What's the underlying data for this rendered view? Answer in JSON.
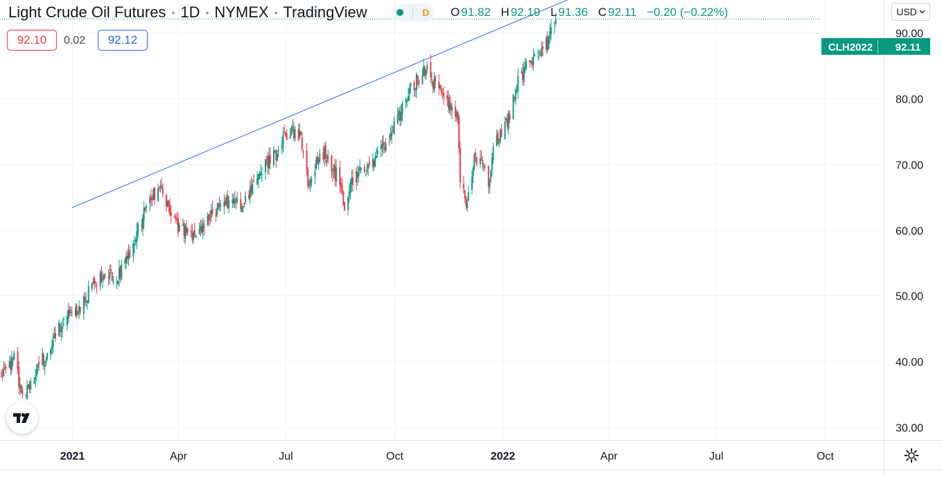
{
  "header": {
    "symbol_name": "Light Crude Oil Futures",
    "interval": "1D",
    "exchange": "NYMEX",
    "source": "TradingView",
    "status_letter": "D"
  },
  "ohlc": {
    "o_label": "O",
    "o": "91.82",
    "h_label": "H",
    "h": "92.19",
    "l_label": "L",
    "l": "91.36",
    "c_label": "C",
    "c": "92.11",
    "change": "−0.20 (−0.22%)"
  },
  "trade": {
    "sell": "92.10",
    "spread": "0.02",
    "buy": "92.12"
  },
  "currency": "USD",
  "colors": {
    "up": "#089981",
    "down": "#f23645",
    "trendline": "#2962ff",
    "grid": "#f0f3fa"
  },
  "chart_data": {
    "type": "candlestick",
    "symbol": "CLH2022",
    "last_price": 92.11,
    "last_price_label": "92.11",
    "ylim": [
      28,
      95
    ],
    "yticks": [
      30,
      40,
      50,
      60,
      70,
      80,
      90
    ],
    "ytick_labels": [
      "30.00",
      "40.00",
      "50.00",
      "60.00",
      "70.00",
      "80.00",
      "90.00"
    ],
    "x_range": [
      "2020-11-01",
      "2022-11-20"
    ],
    "xticks": [
      {
        "date": "2021-01-01",
        "label": "2021",
        "bold": true
      },
      {
        "date": "2021-04-01",
        "label": "Apr",
        "bold": false
      },
      {
        "date": "2021-07-01",
        "label": "Jul",
        "bold": false
      },
      {
        "date": "2021-10-01",
        "label": "Oct",
        "bold": false
      },
      {
        "date": "2022-01-01",
        "label": "2022",
        "bold": true
      },
      {
        "date": "2022-04-01",
        "label": "Apr",
        "bold": false
      },
      {
        "date": "2022-07-01",
        "label": "Jul",
        "bold": false
      },
      {
        "date": "2022-10-01",
        "label": "Oct",
        "bold": false
      }
    ],
    "trendline": [
      {
        "date": "2021-01-01",
        "price": 63.4
      },
      {
        "date": "2022-03-10",
        "price": 96.0
      }
    ],
    "close_path": [
      [
        "2020-11-02",
        37.9
      ],
      [
        "2020-11-05",
        38.0
      ],
      [
        "2020-11-10",
        39.4
      ],
      [
        "2020-11-13",
        40.5
      ],
      [
        "2020-11-16",
        37.9
      ],
      [
        "2020-11-20",
        35.5
      ],
      [
        "2020-11-24",
        35.3
      ],
      [
        "2020-11-30",
        37.5
      ],
      [
        "2020-12-07",
        40.2
      ],
      [
        "2020-12-14",
        41.8
      ],
      [
        "2020-12-18",
        44.5
      ],
      [
        "2020-12-25",
        46.4
      ],
      [
        "2020-12-31",
        47.8
      ],
      [
        "2021-01-05",
        47.0
      ],
      [
        "2021-01-12",
        49.5
      ],
      [
        "2021-01-20",
        52.1
      ],
      [
        "2021-01-28",
        53.2
      ],
      [
        "2021-02-04",
        52.8
      ],
      [
        "2021-02-10",
        53.3
      ],
      [
        "2021-02-18",
        56.4
      ],
      [
        "2021-02-25",
        59.6
      ],
      [
        "2021-03-03",
        62.3
      ],
      [
        "2021-03-08",
        64.8
      ],
      [
        "2021-03-12",
        65.4
      ],
      [
        "2021-03-18",
        66.1
      ],
      [
        "2021-03-25",
        62.5
      ],
      [
        "2021-03-31",
        60.4
      ],
      [
        "2021-04-06",
        59.8
      ],
      [
        "2021-04-13",
        58.5
      ],
      [
        "2021-04-20",
        59.9
      ],
      [
        "2021-04-27",
        62.3
      ],
      [
        "2021-05-04",
        62.9
      ],
      [
        "2021-05-11",
        63.8
      ],
      [
        "2021-05-18",
        64.3
      ],
      [
        "2021-05-25",
        63.1
      ],
      [
        "2021-06-01",
        65.4
      ],
      [
        "2021-06-08",
        68.2
      ],
      [
        "2021-06-15",
        70.4
      ],
      [
        "2021-06-22",
        71.4
      ],
      [
        "2021-06-29",
        73.5
      ],
      [
        "2021-07-06",
        75.1
      ],
      [
        "2021-07-13",
        74.4
      ],
      [
        "2021-07-16",
        72.5
      ],
      [
        "2021-07-20",
        67.3
      ],
      [
        "2021-07-27",
        70.1
      ],
      [
        "2021-08-03",
        71.9
      ],
      [
        "2021-08-09",
        69.4
      ],
      [
        "2021-08-16",
        67.7
      ],
      [
        "2021-08-20",
        62.5
      ],
      [
        "2021-08-27",
        67.8
      ],
      [
        "2021-09-03",
        69.3
      ],
      [
        "2021-09-10",
        69.7
      ],
      [
        "2021-09-17",
        71.3
      ],
      [
        "2021-09-24",
        72.9
      ],
      [
        "2021-10-01",
        75.6
      ],
      [
        "2021-10-08",
        78.3
      ],
      [
        "2021-10-15",
        81.4
      ],
      [
        "2021-10-22",
        83.1
      ],
      [
        "2021-10-29",
        84.4
      ],
      [
        "2021-11-05",
        81.6
      ],
      [
        "2021-11-12",
        80.5
      ],
      [
        "2021-11-19",
        77.8
      ],
      [
        "2021-11-24",
        76.7
      ],
      [
        "2021-11-26",
        68.2
      ],
      [
        "2021-12-01",
        64.8
      ],
      [
        "2021-12-03",
        65.4
      ],
      [
        "2021-12-08",
        70.5
      ],
      [
        "2021-12-15",
        70.4
      ],
      [
        "2021-12-20",
        66.1
      ],
      [
        "2021-12-24",
        72.7
      ],
      [
        "2021-12-31",
        74.9
      ],
      [
        "2022-01-07",
        77.6
      ],
      [
        "2022-01-14",
        82.6
      ],
      [
        "2022-01-21",
        84.9
      ],
      [
        "2022-01-28",
        85.9
      ],
      [
        "2022-02-04",
        88.2
      ],
      [
        "2022-02-08",
        88.4
      ],
      [
        "2022-02-11",
        91.9
      ],
      [
        "2022-02-15",
        92.11
      ]
    ]
  }
}
